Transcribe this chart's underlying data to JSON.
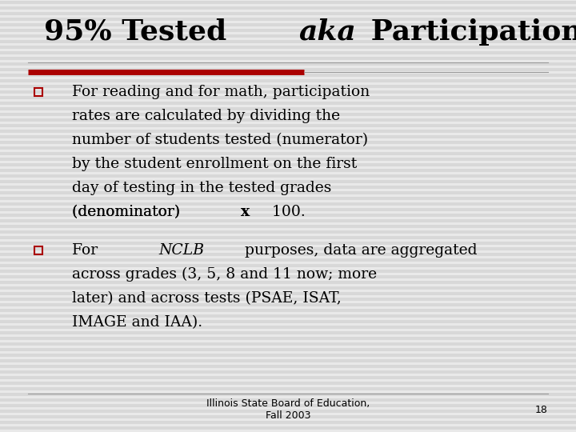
{
  "title_fontsize": 26,
  "title_fontfamily": "DejaVu Serif",
  "bg_color": "#d8d8d8",
  "stripe_color": "#ffffff",
  "accent_bar_color": "#aa0000",
  "line_color": "#999999",
  "bullet_color": "#aa0000",
  "body_fontsize": 13.5,
  "body_fontfamily": "DejaVu Serif",
  "footer_text": "Illinois State Board of Education,\nFall 2003",
  "footer_number": "18",
  "footer_fontsize": 9,
  "bullet1_lines": [
    "For reading and for math, participation",
    "rates are calculated by dividing the",
    "number of students tested (numerator)",
    "by the student enrollment on the first",
    "day of testing in the tested grades",
    "(denominator) "
  ],
  "bullet1_bold_x": "x",
  "bullet1_end": " 100.",
  "bullet2_pre": "For ",
  "bullet2_italic": "NCLB",
  "bullet2_post_first": " purposes, data are aggregated",
  "bullet2_rest": [
    "across grades (3, 5, 8 and 11 now; more",
    "later) and across tests (PSAE, ISAT,",
    "IMAGE and IAA)."
  ]
}
